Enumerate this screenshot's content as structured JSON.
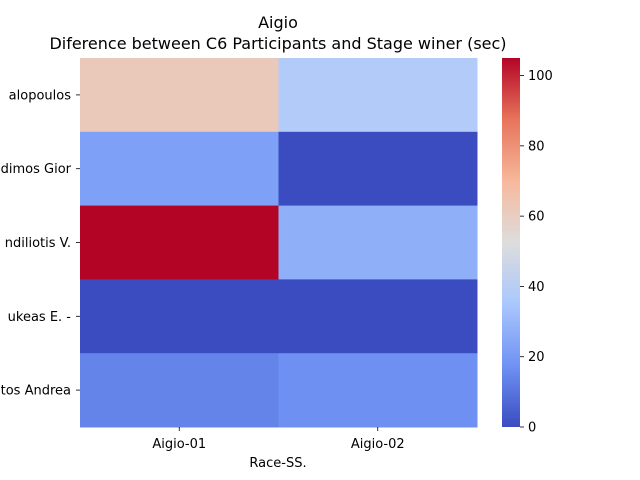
{
  "chart_data": {
    "type": "heatmap",
    "title": "Aigio",
    "subtitle": "Diference between C6 Participants and Stage winer (sec)",
    "xlabel": "Race-SS.",
    "ylabel": "",
    "x_categories": [
      "Aigio-01",
      "Aigio-02"
    ],
    "y_categories": [
      "alopoulos ",
      "dimos Gior",
      "ndiliotis V.",
      "ukeas E.  -  ",
      "tos Andrea"
    ],
    "values": [
      [
        62,
        38
      ],
      [
        22,
        0
      ],
      [
        105,
        27
      ],
      [
        0,
        0
      ],
      [
        14,
        17
      ]
    ],
    "colorbar": {
      "vmin": 0,
      "vmax": 105,
      "ticks": [
        0,
        20,
        40,
        60,
        80,
        100
      ],
      "colormap": "coolwarm"
    },
    "colormap_stops": [
      "#3b4cc0",
      "#6f92f3",
      "#aac7fd",
      "#dddddd",
      "#f7b89c",
      "#e7745b",
      "#b40426"
    ]
  }
}
